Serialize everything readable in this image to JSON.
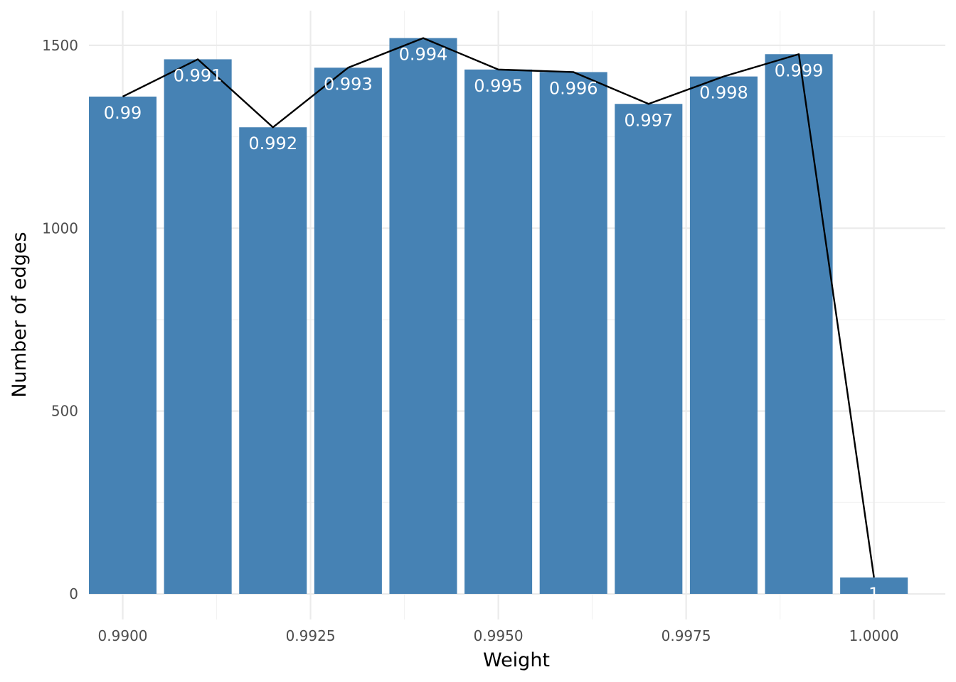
{
  "chart_data": {
    "type": "bar",
    "xlabel": "Weight",
    "ylabel": "Number of edges",
    "xlim": [
      0.98955,
      1.00095
    ],
    "ylim": [
      -70,
      1595
    ],
    "x_ticks": [
      {
        "value": 0.99,
        "label": "0.9900"
      },
      {
        "value": 0.9925,
        "label": "0.9925"
      },
      {
        "value": 0.995,
        "label": "0.9950"
      },
      {
        "value": 0.9975,
        "label": "0.9975"
      },
      {
        "value": 1.0,
        "label": "1.0000"
      }
    ],
    "x_minor_ticks": [
      0.99125,
      0.99375,
      0.99625,
      0.99875
    ],
    "y_ticks": [
      {
        "value": 0,
        "label": "0"
      },
      {
        "value": 500,
        "label": "500"
      },
      {
        "value": 1000,
        "label": "1000"
      },
      {
        "value": 1500,
        "label": "1500"
      }
    ],
    "y_minor_ticks": [
      250,
      750,
      1250
    ],
    "bar_width": 0.0009,
    "bars": [
      {
        "x": 0.99,
        "value": 1360,
        "label": "0.99"
      },
      {
        "x": 0.991,
        "value": 1462,
        "label": "0.991"
      },
      {
        "x": 0.992,
        "value": 1276,
        "label": "0.992"
      },
      {
        "x": 0.993,
        "value": 1439,
        "label": "0.993"
      },
      {
        "x": 0.994,
        "value": 1520,
        "label": "0.994"
      },
      {
        "x": 0.995,
        "value": 1434,
        "label": "0.995"
      },
      {
        "x": 0.996,
        "value": 1427,
        "label": "0.996"
      },
      {
        "x": 0.997,
        "value": 1340,
        "label": "0.997"
      },
      {
        "x": 0.998,
        "value": 1415,
        "label": "0.998"
      },
      {
        "x": 0.999,
        "value": 1476,
        "label": "0.999"
      },
      {
        "x": 1.0,
        "value": 45,
        "label": "1"
      }
    ],
    "line": [
      {
        "x": 0.99,
        "y": 1360
      },
      {
        "x": 0.991,
        "y": 1462
      },
      {
        "x": 0.992,
        "y": 1276
      },
      {
        "x": 0.993,
        "y": 1439
      },
      {
        "x": 0.994,
        "y": 1520
      },
      {
        "x": 0.995,
        "y": 1434
      },
      {
        "x": 0.996,
        "y": 1427
      },
      {
        "x": 0.997,
        "y": 1340
      },
      {
        "x": 0.998,
        "y": 1415
      },
      {
        "x": 0.999,
        "y": 1476
      },
      {
        "x": 1.0,
        "y": 45
      }
    ],
    "grid": true,
    "colors": {
      "bar": "#4682b4",
      "line": "#000000",
      "bar_label": "#ffffff"
    }
  }
}
